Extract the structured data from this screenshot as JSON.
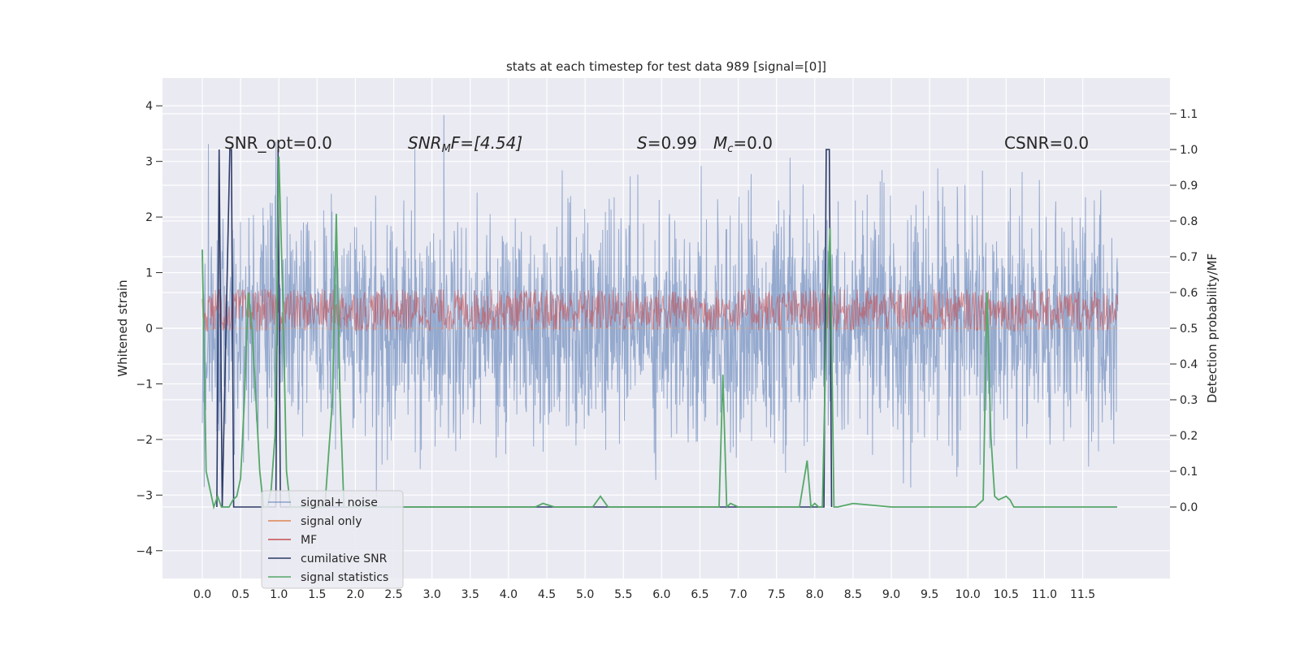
{
  "chart_data": {
    "type": "line",
    "title": "stats at each timestep for test data 989 [signal=[0]]",
    "ylabel": "Whitened strain",
    "y2label": "Detection probability/MF",
    "xlim": [
      -0.52,
      12.64
    ],
    "ylim": [
      -4.5,
      4.5
    ],
    "y2lim": [
      -0.2,
      1.2
    ],
    "xticks": [
      "0.0",
      "0.5",
      "1.0",
      "1.5",
      "2.0",
      "2.5",
      "3.0",
      "3.5",
      "4.0",
      "4.5",
      "5.0",
      "5.5",
      "6.0",
      "6.5",
      "7.0",
      "7.5",
      "8.0",
      "8.5",
      "9.0",
      "9.5",
      "10.0",
      "10.5",
      "11.0",
      "11.5"
    ],
    "yticks": [
      "4",
      "3",
      "2",
      "1",
      "0",
      "−1",
      "−2",
      "−3",
      "−4"
    ],
    "y2ticks": [
      "1.1",
      "1.0",
      "0.9",
      "0.8",
      "0.7",
      "0.6",
      "0.5",
      "0.4",
      "0.3",
      "0.2",
      "0.1",
      "0.0"
    ],
    "grid": true,
    "legend_position": "lower-left",
    "annotations": {
      "snr_opt": "SNR_opt=0.0",
      "snr_mf_main": "SNR",
      "snr_mf_sub": "M",
      "snr_mf_rest": "F=[4.54]",
      "s_main": "S",
      "s_rest": "=0.99",
      "mc_main": "M",
      "mc_sub": "c",
      "mc_rest": "=0.0",
      "csnr": "CSNR=0.0"
    },
    "series": [
      {
        "name": "signal+ noise",
        "color": "#4c72b0",
        "axis": "left",
        "kind": "noise",
        "amplitude": 2.6,
        "x_range": [
          0.0,
          11.96
        ]
      },
      {
        "name": "signal only",
        "color": "#dd8452",
        "axis": "left",
        "kind": "flat",
        "value": 0.0
      },
      {
        "name": "MF",
        "color": "#c44e52",
        "axis": "right",
        "kind": "band",
        "center": 0.55,
        "amplitude": 0.06
      },
      {
        "name": "cumilative SNR",
        "color": "#2b3a67",
        "axis": "right",
        "kind": "spikes",
        "x": [
          0.19,
          0.22,
          0.26,
          0.36,
          0.38,
          0.41,
          0.96,
          0.99,
          1.02,
          8.12,
          8.15,
          8.19,
          8.22
        ],
        "y": [
          0.0,
          1.0,
          0.0,
          1.0,
          1.0,
          0.0,
          0.0,
          1.0,
          0.0,
          0.0,
          1.0,
          1.0,
          0.0
        ]
      },
      {
        "name": "signal statistics",
        "color": "#55a868",
        "axis": "right",
        "x": [
          0.0,
          0.05,
          0.1,
          0.15,
          0.2,
          0.25,
          0.3,
          0.35,
          0.4,
          0.45,
          0.5,
          0.55,
          0.6,
          0.65,
          0.7,
          0.75,
          0.8,
          0.85,
          0.9,
          0.95,
          1.0,
          1.05,
          1.1,
          1.15,
          1.2,
          1.3,
          1.4,
          1.5,
          1.6,
          1.7,
          1.75,
          1.8,
          1.85,
          1.9,
          2.0,
          2.5,
          3.0,
          3.5,
          4.0,
          4.35,
          4.45,
          4.6,
          5.0,
          5.1,
          5.2,
          5.3,
          5.5,
          6.0,
          6.5,
          6.75,
          6.8,
          6.85,
          6.9,
          7.0,
          7.5,
          7.8,
          7.9,
          7.95,
          8.0,
          8.05,
          8.1,
          8.15,
          8.2,
          8.25,
          8.3,
          8.5,
          9.0,
          9.5,
          10.0,
          10.1,
          10.2,
          10.25,
          10.3,
          10.35,
          10.4,
          10.5,
          10.55,
          10.6,
          10.7,
          11.0,
          11.2,
          11.5,
          11.95
        ],
        "y": [
          0.72,
          0.1,
          0.05,
          0.0,
          0.03,
          0.0,
          0.0,
          0.0,
          0.02,
          0.03,
          0.08,
          0.3,
          0.6,
          0.5,
          0.3,
          0.1,
          0.0,
          0.0,
          0.05,
          0.2,
          0.98,
          0.6,
          0.1,
          0.0,
          0.0,
          0.0,
          0.0,
          0.0,
          0.0,
          0.3,
          0.82,
          0.3,
          0.0,
          0.0,
          0.0,
          0.0,
          0.0,
          0.0,
          0.0,
          0.0,
          0.01,
          0.0,
          0.0,
          0.0,
          0.03,
          0.0,
          0.0,
          0.0,
          0.0,
          0.0,
          0.37,
          0.0,
          0.01,
          0.0,
          0.0,
          0.0,
          0.13,
          0.0,
          0.01,
          0.0,
          0.0,
          0.5,
          0.78,
          0.0,
          0.0,
          0.01,
          0.0,
          0.0,
          0.0,
          0.0,
          0.02,
          0.6,
          0.2,
          0.03,
          0.02,
          0.03,
          0.02,
          0.0,
          0.0,
          0.0,
          0.0,
          0.0,
          0.0
        ]
      }
    ]
  }
}
